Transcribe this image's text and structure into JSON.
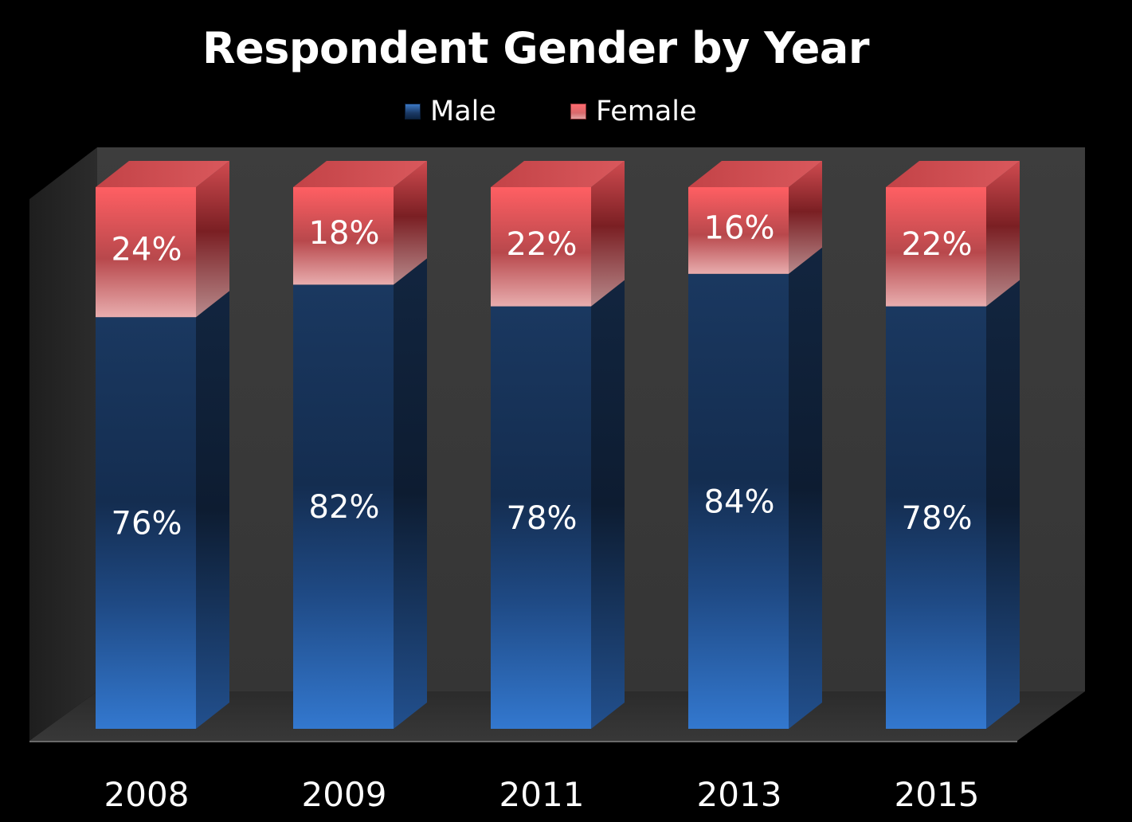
{
  "chart_data": {
    "type": "bar",
    "stacked": true,
    "title": "Respondent Gender by Year",
    "categories": [
      "2008",
      "2009",
      "2011",
      "2013",
      "2015"
    ],
    "series": [
      {
        "name": "Male",
        "values": [
          76,
          82,
          78,
          84,
          78
        ],
        "labels": [
          "76%",
          "82%",
          "78%",
          "84%",
          "78%"
        ]
      },
      {
        "name": "Female",
        "values": [
          24,
          18,
          22,
          16,
          22
        ],
        "labels": [
          "24%",
          "18%",
          "22%",
          "16%",
          "22%"
        ]
      }
    ],
    "ylim": [
      0,
      100
    ],
    "grid": false,
    "legend": "top",
    "colors": {
      "male": "#2f72c6",
      "male_dark": "#13294a",
      "female": "#f4595e",
      "female_light": "#e5a8aa",
      "wall": "#3a3a3a",
      "floor": "#2a2a2a",
      "background": "#000000"
    }
  }
}
